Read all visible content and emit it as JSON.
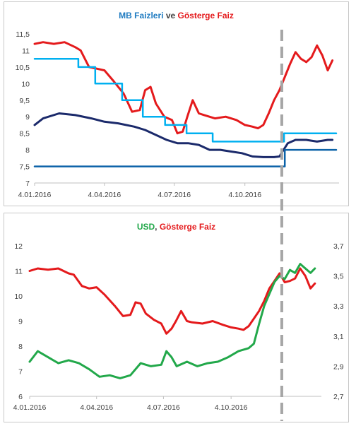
{
  "chart_data": [
    {
      "type": "line",
      "title_parts": [
        {
          "text": "MB Faizleri",
          "color": "#1F7BC1"
        },
        {
          "text": " ve ",
          "color": "#404040"
        },
        {
          "text": "Gösterge Faiz",
          "color": "#E41A1C"
        }
      ],
      "y_ticks": [
        "11,5",
        "11",
        "10,5",
        "10",
        "9,5",
        "9",
        "8,5",
        "8",
        "7,5",
        "7"
      ],
      "ylim": [
        7,
        11.5
      ],
      "x_ticks": [
        "4.01.2016",
        "4.04.2016",
        "4.07.2016",
        "4.10.2016"
      ],
      "x_tick_dates": [
        "2016-01-04",
        "2016-04-04",
        "2016-07-04",
        "2016-10-04"
      ],
      "xlim": [
        "2016-01-04",
        "2017-01-31"
      ],
      "grid": false,
      "marker_date": "2016-11-22",
      "series": [
        {
          "color": "#E41A1C",
          "x": [
            "2016-01-04",
            "2016-01-15",
            "2016-01-29",
            "2016-02-12",
            "2016-02-26",
            "2016-03-04",
            "2016-03-15",
            "2016-03-25",
            "2016-04-04",
            "2016-04-15",
            "2016-04-29",
            "2016-05-10",
            "2016-05-20",
            "2016-05-27",
            "2016-06-03",
            "2016-06-10",
            "2016-06-21",
            "2016-07-01",
            "2016-07-08",
            "2016-07-15",
            "2016-07-21",
            "2016-07-28",
            "2016-08-05",
            "2016-08-12",
            "2016-08-26",
            "2016-09-09",
            "2016-09-23",
            "2016-10-04",
            "2016-10-14",
            "2016-10-21",
            "2016-10-28",
            "2016-11-04",
            "2016-11-11",
            "2016-11-18",
            "2016-11-25",
            "2016-12-02",
            "2016-12-09",
            "2016-12-16",
            "2016-12-23",
            "2016-12-30",
            "2017-01-06",
            "2017-01-13",
            "2017-01-20",
            "2017-01-26"
          ],
          "y": [
            11.2,
            11.25,
            11.2,
            11.25,
            11.1,
            11.0,
            10.5,
            10.45,
            10.4,
            10.1,
            9.7,
            9.15,
            9.2,
            9.8,
            9.9,
            9.4,
            9.0,
            8.9,
            8.5,
            8.55,
            9.0,
            9.5,
            9.1,
            9.05,
            8.95,
            9.0,
            8.9,
            8.75,
            8.7,
            8.65,
            8.75,
            9.1,
            9.5,
            9.8,
            10.2,
            10.6,
            10.95,
            10.75,
            10.65,
            10.8,
            11.15,
            10.85,
            10.4,
            10.7
          ]
        },
        {
          "color": "#1B2A6B",
          "x": [
            "2016-01-04",
            "2016-01-15",
            "2016-02-05",
            "2016-02-26",
            "2016-03-18",
            "2016-04-04",
            "2016-04-22",
            "2016-05-13",
            "2016-05-27",
            "2016-06-10",
            "2016-06-24",
            "2016-07-08",
            "2016-07-22",
            "2016-08-05",
            "2016-08-19",
            "2016-09-02",
            "2016-09-16",
            "2016-09-30",
            "2016-10-14",
            "2016-10-28",
            "2016-11-11",
            "2016-11-18",
            "2016-11-22",
            "2016-11-29",
            "2016-12-09",
            "2016-12-23",
            "2017-01-06",
            "2017-01-20",
            "2017-01-26"
          ],
          "y": [
            8.75,
            8.95,
            9.1,
            9.05,
            8.95,
            8.85,
            8.8,
            8.7,
            8.6,
            8.45,
            8.3,
            8.2,
            8.2,
            8.15,
            8.0,
            8.0,
            7.95,
            7.9,
            7.8,
            7.78,
            7.78,
            7.8,
            7.95,
            8.2,
            8.3,
            8.3,
            8.25,
            8.3,
            8.3
          ]
        },
        {
          "color": "#00B0F0",
          "step": true,
          "x": [
            "2016-01-04",
            "2016-03-01",
            "2016-03-23",
            "2016-04-27",
            "2016-05-24",
            "2016-06-22",
            "2016-07-20",
            "2016-08-23",
            "2016-09-22",
            "2016-11-24",
            "2017-01-31"
          ],
          "y": [
            10.75,
            10.5,
            10.0,
            9.5,
            9.0,
            8.75,
            8.5,
            8.25,
            8.25,
            8.5,
            8.5
          ]
        },
        {
          "color": "#0B62A8",
          "step": true,
          "x": [
            "2016-01-04",
            "2016-11-24",
            "2016-11-25",
            "2017-01-31"
          ],
          "y": [
            7.5,
            7.5,
            8.0,
            8.0
          ]
        }
      ]
    },
    {
      "type": "line",
      "title_parts": [
        {
          "text": "USD",
          "color": "#22A84A"
        },
        {
          "text": ", ",
          "color": "#404040"
        },
        {
          "text": "Gösterge Faiz",
          "color": "#E41A1C"
        }
      ],
      "y_ticks": [
        "12",
        "11",
        "10",
        "9",
        "8",
        "7",
        "6"
      ],
      "ylim": [
        6,
        12
      ],
      "y2_ticks": [
        "3,7",
        "3,5",
        "3,3",
        "3,1",
        "2,9",
        "2,7"
      ],
      "y2lim": [
        2.7,
        3.7
      ],
      "x_ticks": [
        "4.01.2016",
        "4.04.2016",
        "4.07.2016",
        "4.10.2016"
      ],
      "x_tick_dates": [
        "2016-01-04",
        "2016-04-04",
        "2016-07-04",
        "2016-10-04"
      ],
      "xlim": [
        "2016-01-04",
        "2017-01-31"
      ],
      "grid": false,
      "marker_date": "2016-11-22",
      "series": [
        {
          "color": "#E41A1C",
          "axis": "left",
          "x": [
            "2016-01-04",
            "2016-01-15",
            "2016-01-29",
            "2016-02-12",
            "2016-02-26",
            "2016-03-04",
            "2016-03-15",
            "2016-03-25",
            "2016-04-04",
            "2016-04-15",
            "2016-04-29",
            "2016-05-10",
            "2016-05-20",
            "2016-05-27",
            "2016-06-03",
            "2016-06-10",
            "2016-06-21",
            "2016-07-01",
            "2016-07-08",
            "2016-07-15",
            "2016-07-21",
            "2016-07-28",
            "2016-08-05",
            "2016-08-12",
            "2016-08-26",
            "2016-09-09",
            "2016-09-23",
            "2016-10-04",
            "2016-10-14",
            "2016-10-21",
            "2016-10-28",
            "2016-11-04",
            "2016-11-11",
            "2016-11-18",
            "2016-11-25",
            "2016-12-02",
            "2016-12-09",
            "2016-12-16",
            "2016-12-23",
            "2016-12-30",
            "2017-01-06",
            "2017-01-13",
            "2017-01-20",
            "2017-01-26"
          ],
          "y": [
            11.0,
            11.1,
            11.05,
            11.1,
            10.9,
            10.85,
            10.4,
            10.3,
            10.35,
            10.05,
            9.6,
            9.2,
            9.25,
            9.75,
            9.7,
            9.3,
            9.05,
            8.9,
            8.5,
            8.7,
            9.0,
            9.4,
            9.0,
            8.95,
            8.9,
            9.0,
            8.85,
            8.75,
            8.7,
            8.65,
            8.8,
            9.1,
            9.4,
            9.8,
            10.3,
            10.6,
            10.9,
            10.55,
            10.6,
            10.7,
            11.1,
            10.8,
            10.3,
            10.5
          ]
        },
        {
          "color": "#22A84A",
          "axis": "right",
          "x": [
            "2016-01-04",
            "2016-01-15",
            "2016-01-29",
            "2016-02-12",
            "2016-02-26",
            "2016-03-11",
            "2016-03-25",
            "2016-04-08",
            "2016-04-22",
            "2016-05-06",
            "2016-05-20",
            "2016-06-03",
            "2016-06-17",
            "2016-07-01",
            "2016-07-08",
            "2016-07-15",
            "2016-07-22",
            "2016-08-05",
            "2016-08-19",
            "2016-09-02",
            "2016-09-16",
            "2016-09-30",
            "2016-10-14",
            "2016-10-28",
            "2016-11-04",
            "2016-11-11",
            "2016-11-18",
            "2016-11-25",
            "2016-12-02",
            "2016-12-09",
            "2016-12-16",
            "2016-12-23",
            "2016-12-30",
            "2017-01-06",
            "2017-01-13",
            "2017-01-20",
            "2017-01-26"
          ],
          "y": [
            2.93,
            3.0,
            2.96,
            2.92,
            2.94,
            2.92,
            2.88,
            2.83,
            2.84,
            2.82,
            2.84,
            2.92,
            2.9,
            2.91,
            3.0,
            2.96,
            2.9,
            2.93,
            2.9,
            2.92,
            2.93,
            2.96,
            3.0,
            3.02,
            3.05,
            3.18,
            3.3,
            3.38,
            3.46,
            3.5,
            3.48,
            3.54,
            3.52,
            3.58,
            3.55,
            3.52,
            3.55
          ]
        }
      ]
    }
  ]
}
